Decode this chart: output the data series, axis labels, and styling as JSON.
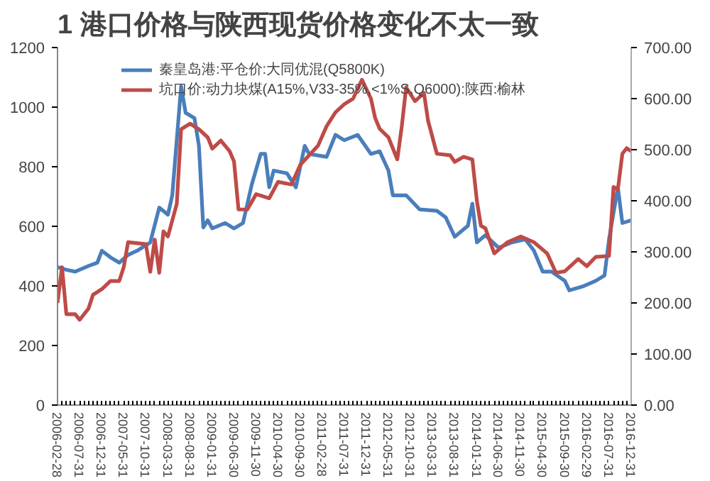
{
  "chart_data": {
    "type": "line",
    "title": "1  港口价格与陕西现货价格变化不太一致",
    "xlim": [
      "2006-02-28",
      "2016-12-31"
    ],
    "xticks": [
      "2006-02-28",
      "2006-07-31",
      "2006-12-31",
      "2007-05-31",
      "2007-10-31",
      "2008-03-31",
      "2008-08-31",
      "2009-01-31",
      "2009-06-30",
      "2009-11-30",
      "2010-04-30",
      "2010-09-30",
      "2011-02-28",
      "2011-07-31",
      "2011-12-31",
      "2012-05-31",
      "2012-10-31",
      "2013-03-31",
      "2013-08-31",
      "2014-01-31",
      "2014-06-30",
      "2014-11-30",
      "2015-04-30",
      "2015-09-30",
      "2016-02-29",
      "2016-07-31",
      "2016-12-31"
    ],
    "ylim": [
      0,
      1200
    ],
    "yticks": [
      0,
      200,
      400,
      600,
      800,
      1000,
      1200
    ],
    "y2lim": [
      0,
      700
    ],
    "y2ticks": [
      {
        "value": 0,
        "label": "0.00"
      },
      {
        "value": 100,
        "label": "100.00"
      },
      {
        "value": 200,
        "label": "200.00"
      },
      {
        "value": 300,
        "label": "300.00"
      },
      {
        "value": 400,
        "label": "400.00"
      },
      {
        "value": 500,
        "label": "500.00"
      },
      {
        "value": 600,
        "label": "600.00"
      },
      {
        "value": 700,
        "label": "700.00"
      }
    ],
    "grid": false,
    "legend": "top",
    "line_style": "solid",
    "marker": "none",
    "series": [
      {
        "name": "秦皇岛港:平仓价:大同优混(Q5800K)",
        "color": "#4a7ebb",
        "x": [
          "2006-02-28",
          "2006-04-30",
          "2006-06-30",
          "2006-09-30",
          "2006-11-30",
          "2006-12-31",
          "2007-02-28",
          "2007-04-30",
          "2007-06-30",
          "2007-08-31",
          "2007-11-30",
          "2008-01-31",
          "2008-03-31",
          "2008-04-30",
          "2008-06-30",
          "2008-07-31",
          "2008-09-30",
          "2008-10-31",
          "2008-11-30",
          "2008-12-31",
          "2009-01-31",
          "2009-04-30",
          "2009-06-30",
          "2009-08-31",
          "2009-10-31",
          "2009-12-31",
          "2010-01-31",
          "2010-02-28",
          "2010-03-31",
          "2010-06-30",
          "2010-08-31",
          "2010-10-31",
          "2010-11-30",
          "2011-03-31",
          "2011-05-31",
          "2011-07-31",
          "2011-10-31",
          "2012-01-31",
          "2012-03-31",
          "2012-05-31",
          "2012-06-30",
          "2012-09-30",
          "2012-12-31",
          "2013-04-30",
          "2013-06-30",
          "2013-08-31",
          "2013-11-30",
          "2013-12-31",
          "2014-01-31",
          "2014-03-31",
          "2014-06-30",
          "2014-09-30",
          "2014-12-31",
          "2015-02-28",
          "2015-04-30",
          "2015-06-30",
          "2015-09-30",
          "2015-10-31",
          "2016-01-31",
          "2016-04-30",
          "2016-06-30",
          "2016-07-31",
          "2016-09-30",
          "2016-10-31",
          "2016-12-31"
        ],
        "values": [
          463,
          454,
          448,
          467,
          478,
          518,
          496,
          478,
          504,
          518,
          546,
          663,
          639,
          704,
          1070,
          981,
          963,
          870,
          596,
          620,
          593,
          611,
          593,
          611,
          741,
          843,
          843,
          731,
          787,
          778,
          731,
          870,
          843,
          833,
          907,
          889,
          907,
          843,
          852,
          787,
          704,
          704,
          657,
          652,
          630,
          565,
          602,
          676,
          546,
          570,
          528,
          546,
          556,
          519,
          448,
          448,
          417,
          385,
          398,
          417,
          435,
          556,
          731,
          611,
          620
        ]
      },
      {
        "name": "坑口价:动力块煤(A15%,V33-35%,<1%S,Q6000):陕西:榆林",
        "color": "#be4b48",
        "axis": "y2",
        "x": [
          "2006-02-28",
          "2006-03-31",
          "2006-04-30",
          "2006-06-30",
          "2006-07-31",
          "2006-09-30",
          "2006-10-31",
          "2006-12-31",
          "2007-02-28",
          "2007-04-30",
          "2007-05-31",
          "2007-06-30",
          "2007-10-31",
          "2007-11-30",
          "2007-12-31",
          "2008-01-31",
          "2008-02-29",
          "2008-03-31",
          "2008-05-31",
          "2008-06-30",
          "2008-08-31",
          "2008-10-31",
          "2008-12-31",
          "2009-01-31",
          "2009-03-31",
          "2009-05-31",
          "2009-06-30",
          "2009-07-31",
          "2009-09-30",
          "2009-11-30",
          "2010-02-28",
          "2010-04-30",
          "2010-07-31",
          "2010-09-30",
          "2011-01-31",
          "2011-03-31",
          "2011-05-31",
          "2011-07-31",
          "2011-09-30",
          "2011-11-30",
          "2012-01-31",
          "2012-02-29",
          "2012-03-31",
          "2012-05-31",
          "2012-07-31",
          "2012-08-31",
          "2012-09-30",
          "2012-11-30",
          "2013-01-31",
          "2013-02-28",
          "2013-04-30",
          "2013-07-31",
          "2013-08-31",
          "2013-10-31",
          "2013-12-31",
          "2014-01-31",
          "2014-02-28",
          "2014-03-31",
          "2014-05-31",
          "2014-08-31",
          "2014-11-30",
          "2015-02-28",
          "2015-05-31",
          "2015-07-31",
          "2015-09-30",
          "2015-12-31",
          "2016-02-29",
          "2016-04-30",
          "2016-07-31",
          "2016-08-31",
          "2016-09-30",
          "2016-10-31",
          "2016-11-30",
          "2016-12-31"
        ],
        "values": [
          200,
          270,
          178,
          178,
          167,
          189,
          216,
          227,
          243,
          243,
          270,
          319,
          315,
          261,
          324,
          259,
          340,
          330,
          394,
          540,
          551,
          540,
          524,
          502,
          518,
          497,
          477,
          383,
          383,
          413,
          405,
          437,
          432,
          470,
          508,
          546,
          573,
          589,
          600,
          637,
          600,
          562,
          541,
          524,
          481,
          546,
          622,
          595,
          611,
          557,
          492,
          489,
          476,
          486,
          481,
          400,
          351,
          346,
          297,
          319,
          330,
          319,
          297,
          259,
          262,
          286,
          272,
          290,
          292,
          427,
          422,
          492,
          503,
          497
        ]
      }
    ]
  }
}
